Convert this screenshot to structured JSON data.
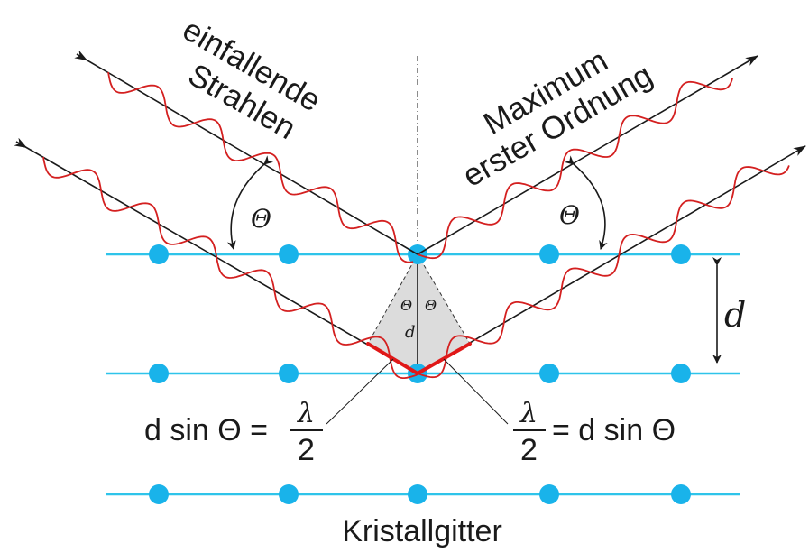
{
  "labels": {
    "incoming_line1": "einfallende",
    "incoming_line2": "Strahlen",
    "outgoing_line1": "Maximum",
    "outgoing_line2": "erster Ordnung",
    "theta": "Θ",
    "d": "d",
    "formula_left_prefix": "d sin Θ =",
    "formula_right_suffix": "= d sin Θ",
    "lambda": "λ",
    "two": "2",
    "crystal": "Kristallgitter"
  },
  "colors": {
    "lattice": "#2ec4ea",
    "atom": "#19b3ea",
    "wave": "#d42020",
    "ray": "#1a1a1a",
    "path_difference": "#e01818",
    "triangle_fill": "#dcdcdc"
  },
  "icons": {
    "ray_tail": "arrow-tail-icon",
    "ray_head": "arrow-head-icon"
  }
}
